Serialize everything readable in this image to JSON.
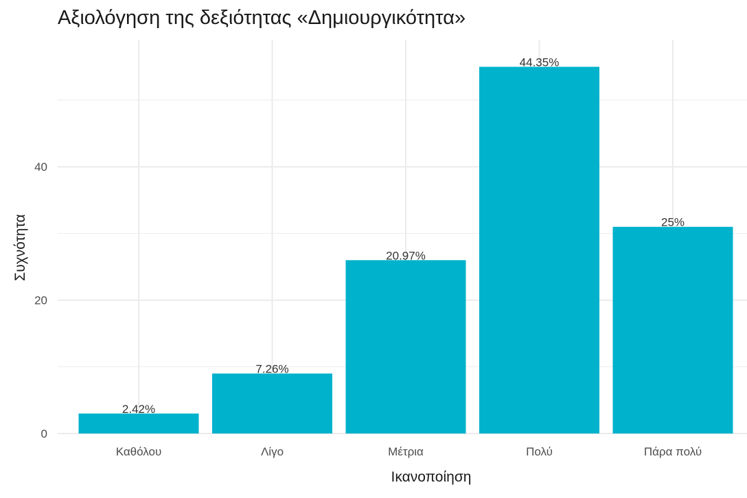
{
  "chart_data": {
    "type": "bar",
    "title": "Αξιολόγηση της δεξιότητας «Δημιουργικότητα»",
    "xlabel": "Ικανοποίηση",
    "ylabel": "Συχνότητα",
    "categories": [
      "Καθόλου",
      "Λίγο",
      "Μέτρια",
      "Πολύ",
      "Πάρα πολύ"
    ],
    "values": [
      3,
      9,
      26,
      55,
      31
    ],
    "value_labels": [
      "2.42%",
      "7.26%",
      "20.97%",
      "44.35%",
      "25%"
    ],
    "y_ticks": [
      0,
      20,
      40
    ],
    "y_tick_labels": [
      "0",
      "20",
      "40"
    ],
    "ylim": [
      0,
      58
    ],
    "grid": true,
    "bar_color": "#00B2CC",
    "grid_color": "#EBEBEB"
  }
}
